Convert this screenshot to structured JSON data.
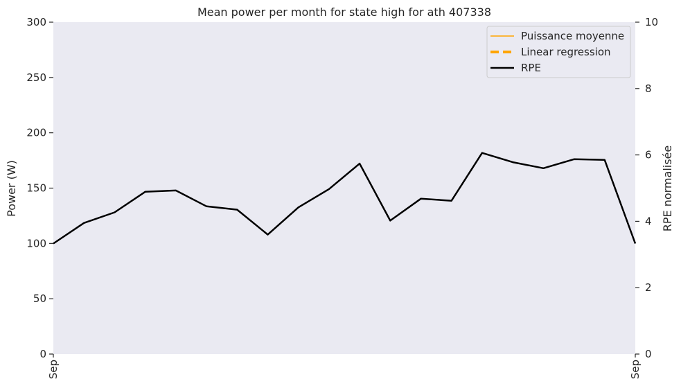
{
  "chart_data": {
    "type": "line",
    "title": "Mean power per month for state high for ath 407338",
    "ylabel": "Power (W)",
    "y2label": "RPE normalisée",
    "xlabel": "",
    "ylim": [
      0,
      300
    ],
    "y2lim": [
      0,
      10
    ],
    "yticks": [
      0,
      50,
      100,
      150,
      200,
      250,
      300
    ],
    "y2ticks": [
      0,
      2,
      4,
      6,
      8,
      10
    ],
    "xticklabels": [
      "Sep",
      "Sep"
    ],
    "grid": false,
    "legend_position": "top-right",
    "legend": [
      {
        "label": "Puissance moyenne",
        "color": "#ffa500",
        "style": "solid-thin"
      },
      {
        "label": "Linear regression",
        "color": "#ffa500",
        "style": "dashed-thick"
      },
      {
        "label": "RPE",
        "color": "#000000",
        "style": "solid"
      }
    ],
    "series": [
      {
        "name": "RPE",
        "axis": "right",
        "color": "#000000",
        "values": [
          3.33,
          3.95,
          4.27,
          4.89,
          4.93,
          4.45,
          4.35,
          3.6,
          4.42,
          4.97,
          5.74,
          4.02,
          4.68,
          4.62,
          6.06,
          5.78,
          5.6,
          5.87,
          5.85,
          3.33
        ]
      }
    ],
    "background_color": "#eaeaf2"
  }
}
